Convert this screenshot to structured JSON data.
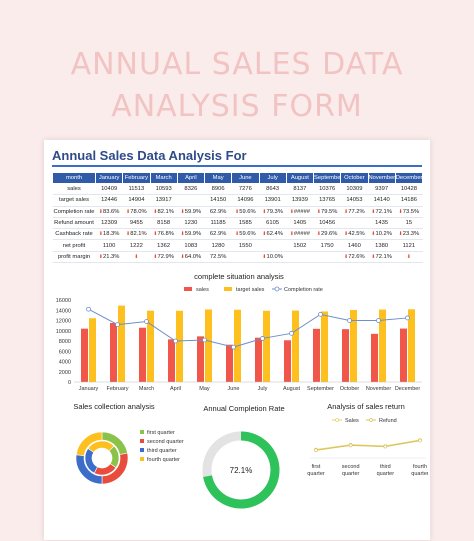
{
  "banner": {
    "line1": "ANNUAL SALES DATA",
    "line2": "ANALYSIS FORM"
  },
  "doc_title": "Annual Sales Data Analysis For",
  "table": {
    "headers": [
      "month",
      "January",
      "February",
      "March",
      "April",
      "May",
      "June",
      "July",
      "August",
      "September",
      "October",
      "November",
      "December"
    ],
    "rows": [
      {
        "label": "sales",
        "cells": [
          "10409",
          "11513",
          "10593",
          "8326",
          "8906",
          "7276",
          "8643",
          "8137",
          "10376",
          "10309",
          "9397",
          "10428"
        ]
      },
      {
        "label": "target sales",
        "cells": [
          "12446",
          "14904",
          "13917",
          "",
          "14150",
          "14096",
          "13901",
          "13939",
          "13765",
          "14053",
          "14140",
          "14186"
        ]
      },
      {
        "label": "Completion rate",
        "cells": [
          "83.6%",
          "78.0%",
          "82.1%",
          "59.9%",
          "62.9%",
          "59.6%",
          "79.3%",
          "#####",
          "79.5%",
          "77.2%",
          "72.1%",
          "73.5%"
        ],
        "arrows": [
          true,
          true,
          true,
          true,
          false,
          true,
          true,
          true,
          true,
          true,
          true,
          true
        ]
      },
      {
        "label": "Refund amount",
        "cells": [
          "12309",
          "9455",
          "8158",
          "1230",
          "11185",
          "1585",
          "6105",
          "1405",
          "10456",
          "",
          "1435",
          "15"
        ]
      },
      {
        "label": "Cashback rate",
        "cells": [
          "18.3%",
          "82.1%",
          "76.8%",
          "59.9%",
          "62.9%",
          "59.6%",
          "62.4%",
          "#####",
          "29.6%",
          "42.5%",
          "10.2%",
          "23.3%"
        ],
        "arrows": [
          true,
          true,
          true,
          true,
          false,
          true,
          true,
          true,
          true,
          true,
          true,
          true
        ]
      },
      {
        "label": "net profit",
        "cells": [
          "1100",
          "1222",
          "1362",
          "1083",
          "1280",
          "1550",
          "",
          "1502",
          "1750",
          "1460",
          "1380",
          "1121"
        ]
      },
      {
        "label": "profit margin",
        "cells": [
          "21.3%",
          "",
          "72.9%",
          "64.0%",
          "72.5%",
          "",
          "10.0%",
          "",
          "",
          "72.6%",
          "72.1%",
          ""
        ],
        "arrows": [
          true,
          true,
          true,
          true,
          false,
          false,
          true,
          false,
          false,
          true,
          true,
          true
        ]
      }
    ]
  },
  "main_chart_title": "complete situation analysis",
  "sales_collection_title": "Sales collection analysis",
  "completion_title": "Annual Completion Rate",
  "return_title": "Analysis of sales return",
  "colors": {
    "sales": "#f0564a",
    "target": "#fdc01e",
    "rate": "#6e8fc9",
    "header": "#2f5ba8",
    "donut_ring": "#2ec25b"
  },
  "chart_data": [
    {
      "type": "bar",
      "title": "complete situation analysis",
      "categories": [
        "January",
        "February",
        "March",
        "April",
        "May",
        "June",
        "July",
        "August",
        "September",
        "October",
        "November",
        "December"
      ],
      "series": [
        {
          "name": "sales",
          "values": [
            10409,
            11513,
            10593,
            8326,
            8906,
            7276,
            8643,
            8137,
            10376,
            10309,
            9397,
            10428
          ]
        },
        {
          "name": "target sales",
          "values": [
            12446,
            14904,
            13917,
            13900,
            14150,
            14096,
            13901,
            13939,
            13765,
            14053,
            14140,
            14186
          ]
        },
        {
          "name": "Completion rate",
          "type": "line",
          "values": [
            14200,
            11200,
            11800,
            8000,
            8200,
            6800,
            8500,
            9500,
            13200,
            12000,
            12000,
            12500
          ]
        }
      ],
      "yticks": [
        0,
        2000,
        4000,
        6000,
        8000,
        10000,
        12000,
        14000,
        16000
      ],
      "ylim": [
        0,
        16000
      ],
      "legend": "top"
    },
    {
      "type": "pie",
      "title": "Sales collection analysis",
      "labels": [
        "first quarter",
        "second quarter",
        "third quarter",
        "fourth quarter"
      ],
      "colors": [
        "#8bc34a",
        "#e84c3d",
        "#3b6dc9",
        "#fdc01e"
      ],
      "values": [
        22,
        28,
        27,
        23
      ],
      "legend": "right"
    },
    {
      "type": "pie",
      "title": "Annual Completion Rate",
      "values": [
        72.1,
        27.9
      ],
      "center_label": "72.1%"
    },
    {
      "type": "line",
      "title": "Analysis of sales return",
      "categories": [
        "first quarter",
        "second quarter",
        "third quarter",
        "fourth quarter"
      ],
      "series": [
        {
          "name": "Sales",
          "values": [
            30,
            34,
            33,
            38
          ]
        },
        {
          "name": "Refund",
          "values": [
            30,
            34,
            33,
            38
          ]
        }
      ],
      "legend": "top"
    }
  ]
}
